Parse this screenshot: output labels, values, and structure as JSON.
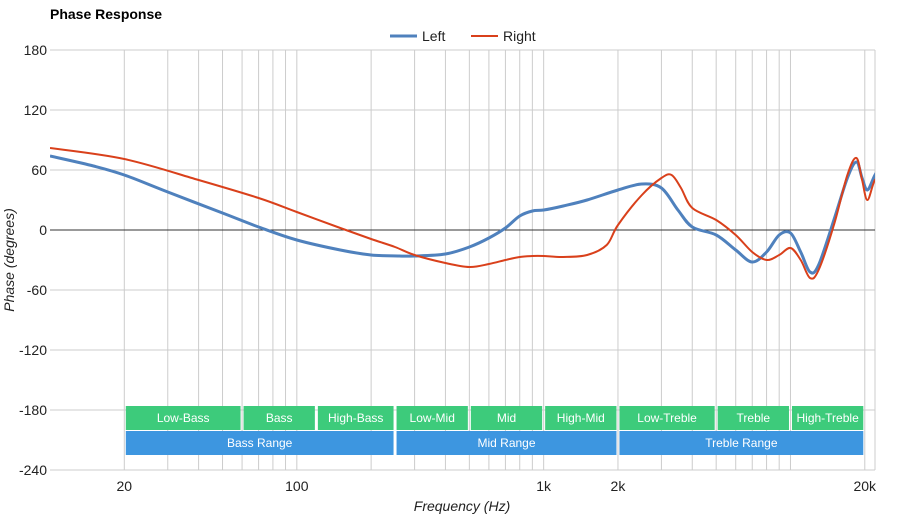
{
  "chart_data": {
    "type": "line",
    "title": "Phase Response",
    "xlabel": "Frequency (Hz)",
    "ylabel": "Phase (degrees)",
    "x_scale": "log",
    "xlim": [
      10,
      22000
    ],
    "ylim": [
      -240,
      180
    ],
    "y_ticks": [
      180,
      120,
      60,
      0,
      -60,
      -120,
      -180,
      -240
    ],
    "x_tick_labels": [
      {
        "value": 20,
        "label": "20"
      },
      {
        "value": 100,
        "label": "100"
      },
      {
        "value": 1000,
        "label": "1k"
      },
      {
        "value": 2000,
        "label": "2k"
      },
      {
        "value": 20000,
        "label": "20k"
      }
    ],
    "x_gridlines": [
      20,
      30,
      40,
      50,
      60,
      70,
      80,
      90,
      100,
      200,
      300,
      400,
      500,
      600,
      700,
      800,
      900,
      1000,
      2000,
      3000,
      4000,
      5000,
      6000,
      7000,
      8000,
      9000,
      10000,
      20000
    ],
    "grid": true,
    "legend_position": "top-center",
    "series": [
      {
        "name": "Left",
        "color": "#4f81bd",
        "points": [
          [
            10,
            74
          ],
          [
            15,
            64
          ],
          [
            20,
            55
          ],
          [
            30,
            38
          ],
          [
            50,
            17
          ],
          [
            70,
            3
          ],
          [
            100,
            -10
          ],
          [
            150,
            -20
          ],
          [
            200,
            -25
          ],
          [
            260,
            -26
          ],
          [
            300,
            -26
          ],
          [
            400,
            -24
          ],
          [
            500,
            -17
          ],
          [
            600,
            -8
          ],
          [
            700,
            2
          ],
          [
            800,
            14
          ],
          [
            900,
            19
          ],
          [
            1000,
            20
          ],
          [
            1200,
            24
          ],
          [
            1500,
            30
          ],
          [
            2000,
            40
          ],
          [
            2500,
            46
          ],
          [
            3000,
            42
          ],
          [
            3500,
            20
          ],
          [
            4000,
            3
          ],
          [
            5000,
            -5
          ],
          [
            6000,
            -20
          ],
          [
            7000,
            -32
          ],
          [
            8000,
            -22
          ],
          [
            9000,
            -5
          ],
          [
            10000,
            -3
          ],
          [
            11000,
            -22
          ],
          [
            12000,
            -42
          ],
          [
            13000,
            -35
          ],
          [
            15000,
            10
          ],
          [
            17000,
            52
          ],
          [
            18500,
            68
          ],
          [
            19500,
            52
          ],
          [
            20500,
            40
          ],
          [
            22000,
            55
          ],
          [
            24000,
            70
          ]
        ]
      },
      {
        "name": "Right",
        "color": "#d9401b",
        "points": [
          [
            10,
            82
          ],
          [
            20,
            71
          ],
          [
            40,
            50
          ],
          [
            70,
            32
          ],
          [
            100,
            18
          ],
          [
            150,
            2
          ],
          [
            200,
            -9
          ],
          [
            250,
            -17
          ],
          [
            300,
            -25
          ],
          [
            400,
            -33
          ],
          [
            500,
            -37
          ],
          [
            600,
            -34
          ],
          [
            700,
            -30
          ],
          [
            800,
            -27
          ],
          [
            900,
            -26
          ],
          [
            1000,
            -26
          ],
          [
            1200,
            -27
          ],
          [
            1500,
            -25
          ],
          [
            1800,
            -15
          ],
          [
            2000,
            5
          ],
          [
            2500,
            35
          ],
          [
            3000,
            52
          ],
          [
            3300,
            55
          ],
          [
            3600,
            42
          ],
          [
            4000,
            22
          ],
          [
            5000,
            10
          ],
          [
            6000,
            -5
          ],
          [
            7000,
            -22
          ],
          [
            8000,
            -30
          ],
          [
            9000,
            -25
          ],
          [
            10000,
            -18
          ],
          [
            11000,
            -30
          ],
          [
            12000,
            -48
          ],
          [
            13000,
            -40
          ],
          [
            15000,
            5
          ],
          [
            17000,
            55
          ],
          [
            18500,
            72
          ],
          [
            19500,
            50
          ],
          [
            20500,
            30
          ],
          [
            22000,
            50
          ],
          [
            24000,
            53
          ]
        ]
      }
    ],
    "bands": [
      {
        "label": "Low-Bass",
        "from": 20,
        "to": 60,
        "row": 0,
        "color": "#3dcb7b"
      },
      {
        "label": "Bass",
        "from": 60,
        "to": 120,
        "row": 0,
        "color": "#3dcb7b"
      },
      {
        "label": "High-Bass",
        "from": 120,
        "to": 250,
        "row": 0,
        "color": "#3dcb7b"
      },
      {
        "label": "Low-Mid",
        "from": 250,
        "to": 500,
        "row": 0,
        "color": "#3dcb7b"
      },
      {
        "label": "Mid",
        "from": 500,
        "to": 1000,
        "row": 0,
        "color": "#3dcb7b"
      },
      {
        "label": "High-Mid",
        "from": 1000,
        "to": 2000,
        "row": 0,
        "color": "#3dcb7b"
      },
      {
        "label": "Low-Treble",
        "from": 2000,
        "to": 5000,
        "row": 0,
        "color": "#3dcb7b"
      },
      {
        "label": "Treble",
        "from": 5000,
        "to": 10000,
        "row": 0,
        "color": "#3dcb7b"
      },
      {
        "label": "High-Treble",
        "from": 10000,
        "to": 20000,
        "row": 0,
        "color": "#3dcb7b"
      },
      {
        "label": "Bass Range",
        "from": 20,
        "to": 250,
        "row": 1,
        "color": "#3d96e0"
      },
      {
        "label": "Mid Range",
        "from": 250,
        "to": 2000,
        "row": 1,
        "color": "#3d96e0"
      },
      {
        "label": "Treble Range",
        "from": 2000,
        "to": 20000,
        "row": 1,
        "color": "#3d96e0"
      }
    ]
  }
}
